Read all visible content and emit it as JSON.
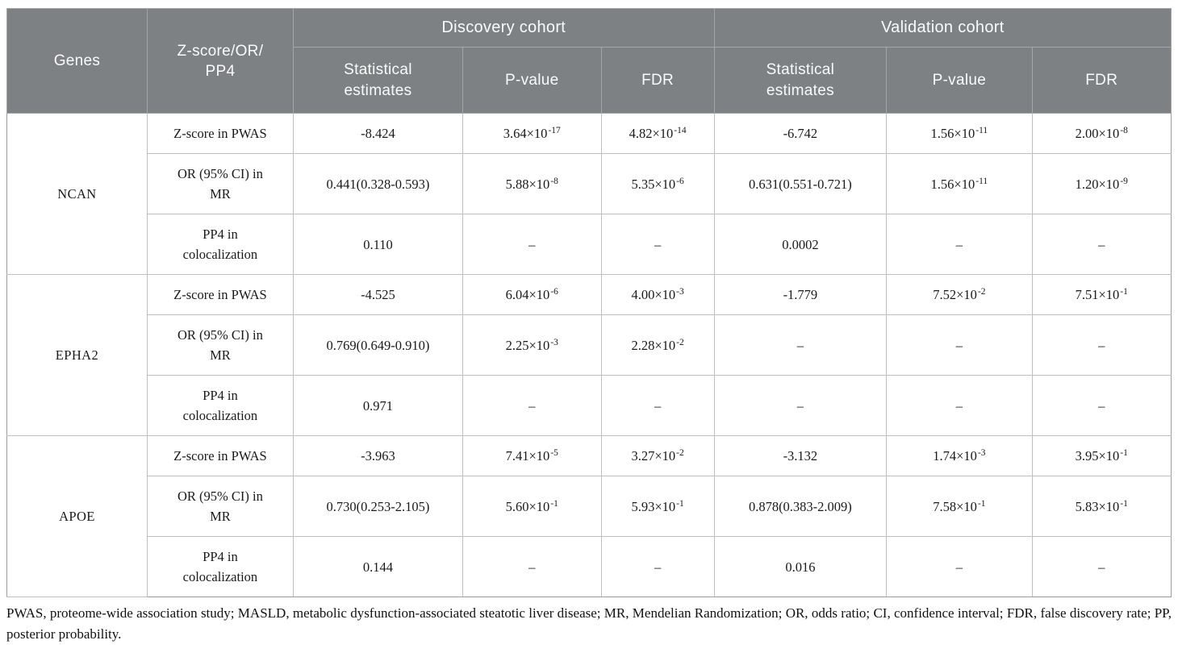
{
  "colors": {
    "header_bg": "#7e8184",
    "header_text": "#fafafa",
    "body_text": "#1a1a1a",
    "grid_line": "#bdbfc0",
    "group_line": "#9a9c9d"
  },
  "table": {
    "header": {
      "genes": "Genes",
      "measure": "Z-score/OR/\nPP4",
      "discovery": "Discovery cohort",
      "validation": "Validation cohort",
      "sub": [
        "Statistical\nestimates",
        "P-value",
        "FDR",
        "Statistical\nestimates",
        "P-value",
        "FDR"
      ]
    },
    "groups": [
      {
        "gene": "NCAN",
        "rows": [
          {
            "measure": "Z-score in PWAS",
            "cells": [
              "-8.424",
              "3.64×10^-17",
              "4.82×10^-14",
              "-6.742",
              "1.56×10^-11",
              "2.00×10^-8"
            ]
          },
          {
            "measure": "OR (95% CI) in\nMR",
            "cells": [
              "0.441(0.328-0.593)",
              "5.88×10^-8",
              "5.35×10^-6",
              "0.631(0.551-0.721)",
              "1.56×10^-11",
              "1.20×10^-9"
            ]
          },
          {
            "measure": "PP4 in\ncolocalization",
            "cells": [
              "0.110",
              "–",
              "–",
              "0.0002",
              "–",
              "–"
            ]
          }
        ]
      },
      {
        "gene": "EPHA2",
        "rows": [
          {
            "measure": "Z-score in PWAS",
            "cells": [
              "-4.525",
              "6.04×10^-6",
              "4.00×10^-3",
              "-1.779",
              "7.52×10^-2",
              "7.51×10^-1"
            ]
          },
          {
            "measure": "OR (95% CI) in\nMR",
            "cells": [
              "0.769(0.649-0.910)",
              "2.25×10^-3",
              "2.28×10^-2",
              "–",
              "–",
              "–"
            ]
          },
          {
            "measure": "PP4 in\ncolocalization",
            "cells": [
              "0.971",
              "–",
              "–",
              "–",
              "–",
              "–"
            ]
          }
        ]
      },
      {
        "gene": "APOE",
        "rows": [
          {
            "measure": "Z-score in PWAS",
            "cells": [
              "-3.963",
              "7.41×10^-5",
              "3.27×10^-2",
              "-3.132",
              "1.74×10^-3",
              "3.95×10^-1"
            ]
          },
          {
            "measure": "OR (95% CI) in\nMR",
            "cells": [
              "0.730(0.253-2.105)",
              "5.60×10^-1",
              "5.93×10^-1",
              "0.878(0.383-2.009)",
              "7.58×10^-1",
              "5.83×10^-1"
            ]
          },
          {
            "measure": "PP4 in\ncolocalization",
            "cells": [
              "0.144",
              "–",
              "–",
              "0.016",
              "–",
              "–"
            ]
          }
        ]
      }
    ],
    "footnote": "PWAS, proteome-wide association study; MASLD, metabolic dysfunction-associated steatotic liver disease; MR, Mendelian Randomization; OR, odds ratio; CI, confidence interval; FDR, false discovery rate; PP, posterior probability."
  }
}
